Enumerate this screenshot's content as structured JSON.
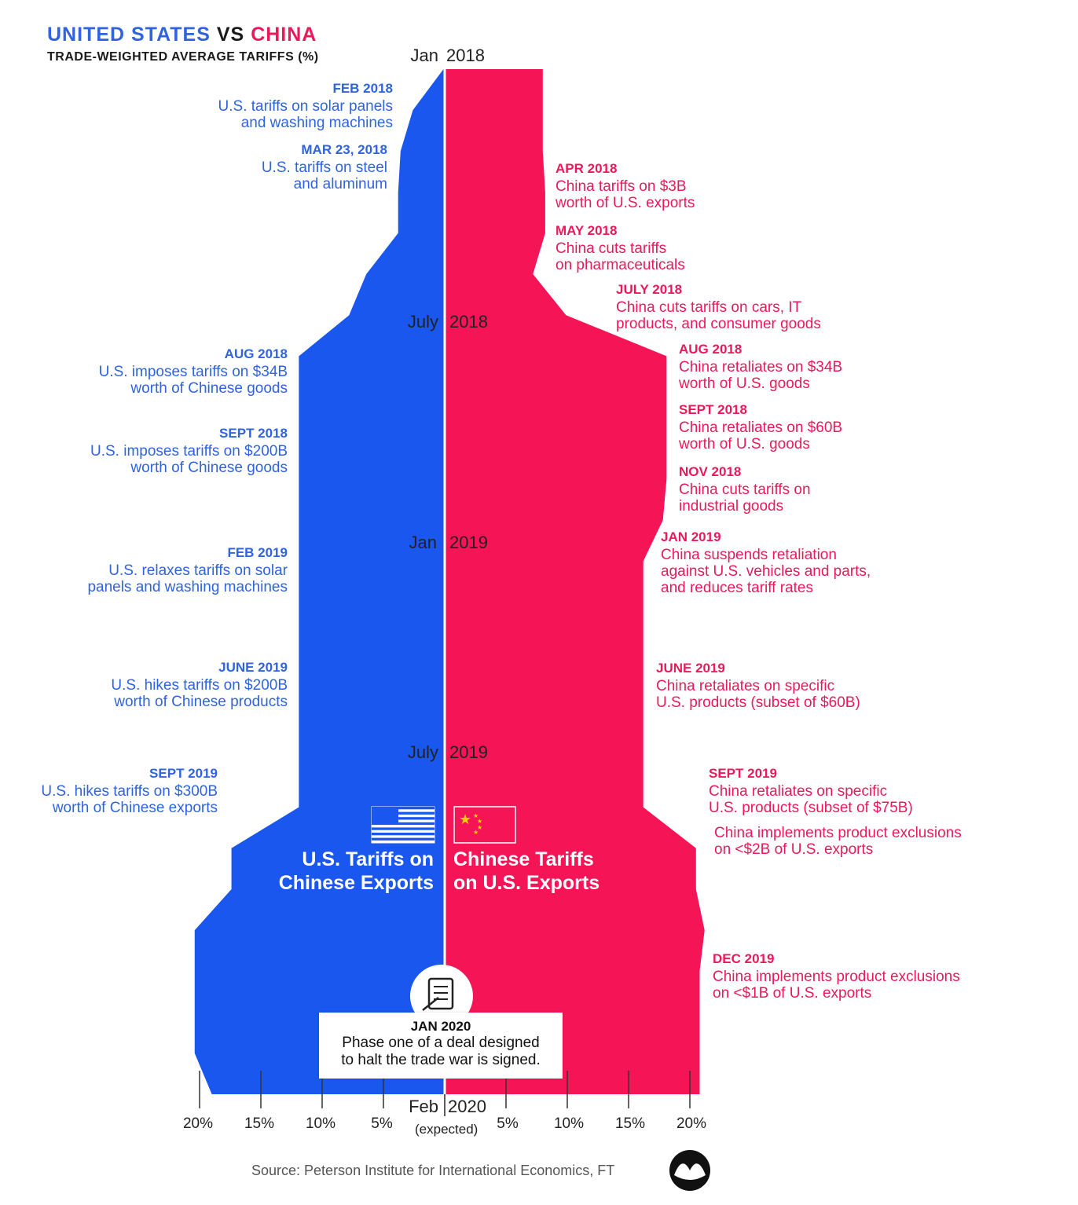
{
  "title": {
    "part1": "UNITED STATES",
    "vs": "VS",
    "part2": "CHINA"
  },
  "subtitle": "TRADE-WEIGHTED AVERAGE TARIFFS (%)",
  "colors": {
    "us": "#1a57ee",
    "china": "#f51455",
    "text_us": "#2f63e0",
    "text_china": "#ea1a5a"
  },
  "months": [
    {
      "left": "Jan",
      "right": "2018"
    },
    {
      "left": "July",
      "right": "2018"
    },
    {
      "left": "Jan",
      "right": "2019"
    },
    {
      "left": "July",
      "right": "2019"
    },
    {
      "left": "Feb",
      "right": "2020",
      "note": "(expected)"
    }
  ],
  "legend": {
    "us": "U.S. Tariffs on\nChinese Exports",
    "china": "Chinese Tariffs\non U.S. Exports"
  },
  "us_events": [
    {
      "date": "FEB 2018",
      "text": "U.S. tariffs on solar panels\nand washing machines"
    },
    {
      "date": "MAR 23, 2018",
      "text": "U.S. tariffs on steel\nand aluminum"
    },
    {
      "date": "AUG 2018",
      "text": "U.S. imposes tariffs on $34B\nworth of Chinese goods"
    },
    {
      "date": "SEPT 2018",
      "text": "U.S. imposes tariffs on $200B\nworth of Chinese goods"
    },
    {
      "date": "FEB 2019",
      "text": "U.S. relaxes tariffs on solar\npanels and washing machines"
    },
    {
      "date": "JUNE 2019",
      "text": "U.S. hikes tariffs on $200B\nworth of Chinese products"
    },
    {
      "date": "SEPT 2019",
      "text": "U.S. hikes tariffs on $300B\nworth of Chinese exports"
    }
  ],
  "china_events": [
    {
      "date": "APR 2018",
      "text": "China tariffs on $3B\nworth of U.S. exports"
    },
    {
      "date": "MAY 2018",
      "text": "China cuts tariffs\non pharmaceuticals"
    },
    {
      "date": "JULY 2018",
      "text": "China cuts tariffs on cars, IT\nproducts, and consumer goods"
    },
    {
      "date": "AUG 2018",
      "text": "China retaliates on $34B\nworth of U.S. goods"
    },
    {
      "date": "SEPT 2018",
      "text": "China retaliates on $60B\nworth of U.S. goods"
    },
    {
      "date": "NOV 2018",
      "text": "China cuts tariffs on\nindustrial goods"
    },
    {
      "date": "JAN 2019",
      "text": "China suspends retaliation\nagainst U.S. vehicles and parts,\nand reduces tariff rates"
    },
    {
      "date": "JUNE 2019",
      "text": "China retaliates on specific\nU.S. products  (subset of $60B)"
    },
    {
      "date": "SEPT 2019",
      "text": "China retaliates on specific\nU.S. products (subset of $75B)"
    },
    {
      "date": "",
      "text": "China implements product exclusions\non <$2B of U.S. exports"
    },
    {
      "date": "DEC 2019",
      "text": "China implements product exclusions\non <$1B of U.S. exports"
    }
  ],
  "deal": {
    "date": "JAN 2020",
    "text": "Phase one of a deal designed\nto halt the trade war is signed."
  },
  "source": "Source: Peterson Institute for International Economics, FT",
  "chart_data": {
    "type": "area",
    "title": "UNITED STATES VS CHINA",
    "subtitle": "TRADE-WEIGHTED AVERAGE TARIFFS (%)",
    "x_axis_ticks_left": [
      "20%",
      "15%",
      "10%",
      "5%"
    ],
    "x_axis_ticks_right": [
      "5%",
      "10%",
      "15%",
      "20%"
    ],
    "xlim": [
      0,
      20
    ],
    "time_range": [
      "Jan 2018",
      "Feb 2020"
    ],
    "series": [
      {
        "name": "U.S. Tariffs on Chinese Exports",
        "points": [
          [
            "Jan 2018",
            0.1
          ],
          [
            "Feb 2018",
            2.6
          ],
          [
            "Mar 2018",
            3.6
          ],
          [
            "Apr 2018",
            3.8
          ],
          [
            "May 2018",
            3.8
          ],
          [
            "Jun 2018",
            6.4
          ],
          [
            "Jul 2018",
            7.8
          ],
          [
            "Aug 2018",
            11.9
          ],
          [
            "Sep 2018",
            11.9
          ],
          [
            "Oct 2018",
            11.9
          ],
          [
            "Nov 2018",
            11.9
          ],
          [
            "Dec 2018",
            11.9
          ],
          [
            "Jan 2019",
            11.9
          ],
          [
            "Feb 2019",
            11.9
          ],
          [
            "Mar 2019",
            11.9
          ],
          [
            "Apr 2019",
            11.9
          ],
          [
            "May 2019",
            11.9
          ],
          [
            "Jun 2019",
            11.9
          ],
          [
            "Jul 2019",
            11.9
          ],
          [
            "Aug 2019",
            17.4
          ],
          [
            "Sep 2019",
            17.4
          ],
          [
            "Oct 2019",
            20.4
          ],
          [
            "Nov 2019",
            20.4
          ],
          [
            "Dec 2019",
            20.4
          ],
          [
            "Jan 2020",
            20.4
          ],
          [
            "Feb 2020",
            19.0
          ]
        ]
      },
      {
        "name": "Chinese Tariffs on U.S. Exports",
        "points": [
          [
            "Jan 2018",
            8.0
          ],
          [
            "Feb 2018",
            8.0
          ],
          [
            "Mar 2018",
            8.0
          ],
          [
            "Apr 2018",
            8.2
          ],
          [
            "May 2018",
            8.2
          ],
          [
            "Jun 2018",
            7.2
          ],
          [
            "Jul 2018",
            9.9
          ],
          [
            "Aug 2018",
            18.1
          ],
          [
            "Sep 2018",
            18.1
          ],
          [
            "Oct 2018",
            18.1
          ],
          [
            "Nov 2018",
            18.1
          ],
          [
            "Dec 2018",
            17.8
          ],
          [
            "Jan 2019",
            16.2
          ],
          [
            "Feb 2019",
            16.2
          ],
          [
            "Mar 2019",
            16.2
          ],
          [
            "Apr 2019",
            16.2
          ],
          [
            "May 2019",
            16.2
          ],
          [
            "Jun 2019",
            16.2
          ],
          [
            "Jul 2019",
            16.2
          ],
          [
            "Aug 2019",
            20.5
          ],
          [
            "Sep 2019",
            20.5
          ],
          [
            "Oct 2019",
            21.2
          ],
          [
            "Nov 2019",
            20.8
          ],
          [
            "Dec 2019",
            20.8
          ],
          [
            "Jan 2020",
            20.8
          ],
          [
            "Feb 2020",
            20.8
          ]
        ]
      }
    ]
  }
}
